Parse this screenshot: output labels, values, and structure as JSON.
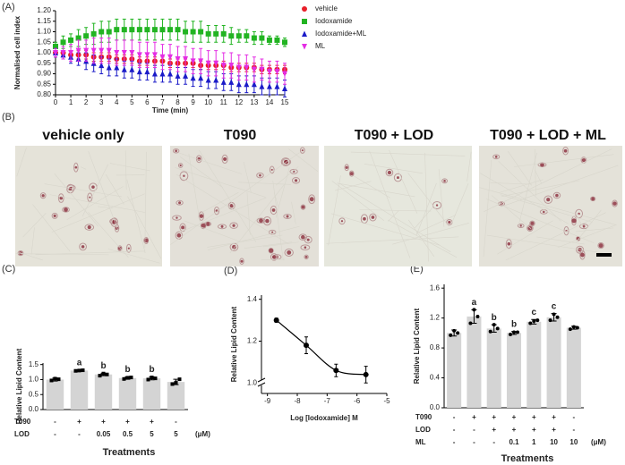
{
  "panel_labels": [
    "(A)",
    "(B)",
    "(C)",
    "(D)",
    "(E)"
  ],
  "panel_b": {
    "captions": [
      "vehicle only",
      "T090",
      "T090 + LOD",
      "T090 + LOD + ML"
    ]
  },
  "chart_data": [
    {
      "type": "line",
      "xlabel": "Time (min)",
      "ylabel": "Normalised cell index",
      "x": [
        0,
        0.5,
        1,
        1.5,
        2,
        2.5,
        3,
        3.5,
        4,
        4.5,
        5,
        5.5,
        6,
        6.5,
        7,
        7.5,
        8,
        8.5,
        9,
        9.5,
        10,
        10.5,
        11,
        11.5,
        12,
        12.5,
        13,
        13.5,
        14,
        14.5,
        15
      ],
      "xlim": [
        0,
        15
      ],
      "xticks": [
        0,
        1,
        2,
        3,
        4,
        5,
        6,
        7,
        8,
        9,
        10,
        11,
        12,
        13,
        14,
        15
      ],
      "ylim": [
        0.8,
        1.2
      ],
      "yticks": [
        {
          "value": 0.8,
          "label": "0.80"
        },
        {
          "value": 0.85,
          "label": "0.85"
        },
        {
          "value": 0.9,
          "label": "0.90"
        },
        {
          "value": 0.95,
          "label": "0.95"
        },
        {
          "value": 1,
          "label": "1.00"
        },
        {
          "value": 1.05,
          "label": "1.05"
        },
        {
          "value": 1.1,
          "label": "1.10"
        },
        {
          "value": 1.15,
          "label": "1.15"
        },
        {
          "value": 1.2,
          "label": "1.20"
        }
      ],
      "legend": "right",
      "series": [
        {
          "name": "vehicle",
          "color": "#e8202a",
          "marker": "circle",
          "values": [
            1.0,
            1.0,
            0.99,
            0.99,
            0.99,
            0.98,
            0.98,
            0.98,
            0.97,
            0.97,
            0.97,
            0.96,
            0.96,
            0.96,
            0.96,
            0.95,
            0.95,
            0.95,
            0.95,
            0.94,
            0.94,
            0.94,
            0.94,
            0.93,
            0.93,
            0.93,
            0.93,
            0.92,
            0.92,
            0.92,
            0.92
          ],
          "errors": [
            0.01,
            0.01,
            0.02,
            0.02,
            0.02,
            0.02,
            0.02,
            0.02,
            0.02,
            0.02,
            0.02,
            0.02,
            0.02,
            0.02,
            0.02,
            0.02,
            0.02,
            0.02,
            0.02,
            0.02,
            0.02,
            0.02,
            0.02,
            0.02,
            0.02,
            0.02,
            0.02,
            0.02,
            0.02,
            0.02,
            0.02
          ]
        },
        {
          "name": "Iodoxamide",
          "color": "#22b422",
          "marker": "square",
          "values": [
            1.03,
            1.05,
            1.06,
            1.07,
            1.08,
            1.09,
            1.1,
            1.1,
            1.11,
            1.11,
            1.11,
            1.11,
            1.11,
            1.11,
            1.11,
            1.11,
            1.11,
            1.1,
            1.1,
            1.1,
            1.09,
            1.09,
            1.09,
            1.08,
            1.08,
            1.08,
            1.07,
            1.07,
            1.06,
            1.06,
            1.05
          ],
          "errors": [
            0.02,
            0.03,
            0.03,
            0.04,
            0.04,
            0.05,
            0.05,
            0.05,
            0.05,
            0.05,
            0.05,
            0.05,
            0.05,
            0.05,
            0.05,
            0.05,
            0.05,
            0.05,
            0.05,
            0.05,
            0.04,
            0.04,
            0.04,
            0.04,
            0.03,
            0.03,
            0.03,
            0.03,
            0.02,
            0.02,
            0.02
          ]
        },
        {
          "name": "Iodoxamide+ML",
          "color": "#1b1bc8",
          "marker": "triangle",
          "values": [
            1.0,
            0.99,
            0.98,
            0.97,
            0.96,
            0.95,
            0.94,
            0.93,
            0.93,
            0.92,
            0.92,
            0.91,
            0.91,
            0.9,
            0.9,
            0.9,
            0.89,
            0.89,
            0.88,
            0.88,
            0.87,
            0.87,
            0.86,
            0.86,
            0.85,
            0.85,
            0.85,
            0.84,
            0.84,
            0.84,
            0.83
          ],
          "errors": [
            0.02,
            0.02,
            0.03,
            0.03,
            0.04,
            0.04,
            0.04,
            0.04,
            0.04,
            0.04,
            0.04,
            0.04,
            0.04,
            0.04,
            0.04,
            0.04,
            0.04,
            0.04,
            0.04,
            0.04,
            0.04,
            0.04,
            0.04,
            0.04,
            0.04,
            0.04,
            0.04,
            0.04,
            0.04,
            0.04,
            0.04
          ]
        },
        {
          "name": "ML",
          "color": "#e42de4",
          "marker": "triangle-down",
          "values": [
            1.0,
            1.0,
            1.0,
            1.01,
            1.01,
            1.01,
            1.01,
            1.01,
            1.0,
            1.0,
            1.0,
            0.99,
            0.99,
            0.99,
            0.98,
            0.98,
            0.97,
            0.97,
            0.96,
            0.96,
            0.95,
            0.95,
            0.94,
            0.94,
            0.93,
            0.93,
            0.92,
            0.92,
            0.91,
            0.91,
            0.9
          ],
          "errors": [
            0.02,
            0.03,
            0.04,
            0.05,
            0.05,
            0.06,
            0.06,
            0.06,
            0.06,
            0.06,
            0.06,
            0.06,
            0.06,
            0.06,
            0.06,
            0.06,
            0.06,
            0.06,
            0.06,
            0.06,
            0.06,
            0.06,
            0.06,
            0.06,
            0.06,
            0.06,
            0.06,
            0.05,
            0.05,
            0.05,
            0.05
          ]
        }
      ]
    },
    {
      "type": "bar",
      "ylabel": "Relative Lipid Content",
      "xlabel": "Treatments",
      "color": "#d4d4d4",
      "values": [
        1.0,
        1.3,
        1.17,
        1.05,
        1.04,
        0.92
      ],
      "errors": [
        0.05,
        0.01,
        0.04,
        0.04,
        0.05,
        0.09
      ],
      "points": [
        [
          0.97,
          1.03,
          1.01
        ],
        [
          1.29,
          1.3,
          1.31
        ],
        [
          1.13,
          1.2,
          1.17
        ],
        [
          1.02,
          1.06,
          1.07
        ],
        [
          1.0,
          1.07,
          1.04
        ],
        [
          0.85,
          0.9,
          1.01
        ]
      ],
      "annotations": [
        null,
        "a",
        "b",
        "b",
        "b",
        null
      ],
      "rows": [
        {
          "name": "T090",
          "values": [
            "-",
            "+",
            "+",
            "+",
            "+",
            "-"
          ]
        },
        {
          "name": "LOD",
          "values": [
            "-",
            "-",
            "0.05",
            "0.5",
            "5",
            "5"
          ]
        }
      ],
      "unit": "(μM)",
      "ylim": [
        0,
        1.55
      ],
      "yticks": [
        {
          "value": 0,
          "label": "0.0"
        },
        0.5,
        {
          "value": 1,
          "label": "1.0"
        },
        1.5
      ]
    },
    {
      "type": "line",
      "xlabel": "Log [Iodoxamide] M",
      "ylabel": "Relative Lipid Content",
      "x": [
        -8.7,
        -7.7,
        -6.7,
        -5.7
      ],
      "values": [
        1.3,
        1.18,
        1.06,
        1.04
      ],
      "errors": [
        0.01,
        0.04,
        0.03,
        0.04
      ],
      "color": "#000000",
      "fit_curve": true,
      "axis_break": true,
      "xlim": [
        -9.2,
        -5
      ],
      "xticks": [
        -9,
        -8,
        -7,
        -6,
        -5
      ],
      "ylim": [
        0.95,
        1.42
      ],
      "yticks": [
        {
          "value": 1,
          "label": "1.0"
        },
        1.2,
        1.4
      ]
    },
    {
      "type": "bar",
      "ylabel": "Relative Lipid Content",
      "xlabel": "Treatments",
      "color": "#d4d4d4",
      "values": [
        1.0,
        1.22,
        1.06,
        1.0,
        1.15,
        1.21,
        1.07
      ],
      "errors": [
        0.04,
        0.09,
        0.05,
        0.02,
        0.03,
        0.05,
        0.02
      ],
      "points": [
        [
          0.97,
          1.03,
          1.0
        ],
        [
          1.13,
          1.31,
          1.22
        ],
        [
          1.02,
          1.11,
          1.06
        ],
        [
          0.98,
          1.01,
          1.01
        ],
        [
          1.13,
          1.16,
          1.17
        ],
        [
          1.17,
          1.25,
          1.21
        ],
        [
          1.05,
          1.08,
          1.07
        ]
      ],
      "annotations": [
        null,
        "a",
        "b",
        "b",
        "c",
        "c",
        null
      ],
      "rows": [
        {
          "name": "T090",
          "values": [
            "-",
            "+",
            "+",
            "+",
            "+",
            "+",
            "-"
          ]
        },
        {
          "name": "LOD",
          "values": [
            "-",
            "-",
            "+",
            "+",
            "+",
            "+",
            "-"
          ]
        },
        {
          "name": "ML",
          "values": [
            "-",
            "-",
            "-",
            "0.1",
            "1",
            "10",
            "10"
          ]
        }
      ],
      "unit": "(μM)",
      "ylim": [
        0,
        1.65
      ],
      "yticks": [
        {
          "value": 0,
          "label": "0.0"
        },
        0.4,
        0.8,
        1.2,
        1.6
      ]
    }
  ]
}
